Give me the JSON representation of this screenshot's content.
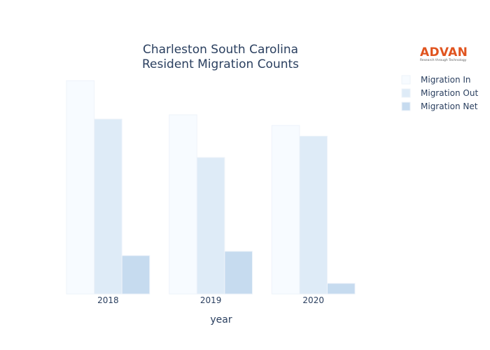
{
  "chart_data": {
    "type": "bar",
    "title_lines": [
      "Charleston South Carolina",
      "Resident Migration Counts"
    ],
    "xlabel": "year",
    "ylabel": "",
    "categories": [
      "2018",
      "2019",
      "2020"
    ],
    "series": [
      {
        "name": "Migration In",
        "values": [
          100,
          84,
          79
        ],
        "color": "#f7fbff"
      },
      {
        "name": "Migration Out",
        "values": [
          82,
          64,
          74
        ],
        "color": "#deebf7"
      },
      {
        "name": "Migration Net",
        "values": [
          18,
          20,
          5
        ],
        "color": "#c6dbef"
      }
    ],
    "ylim": [
      0,
      105
    ],
    "grid": false,
    "legend_position": "top-right"
  },
  "logo": {
    "name": "ADVAN",
    "tagline": "Research through Technology"
  }
}
